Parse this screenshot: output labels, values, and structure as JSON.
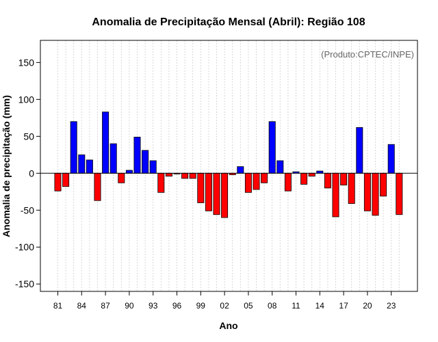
{
  "chart_data": {
    "type": "bar",
    "title": "Anomalia de Precipitação Mensal (Abril): Região 108",
    "xlabel": "Ano",
    "ylabel": "Anomalia de precipitação (mm)",
    "annotation": "(Produto:CPTEC/INPE)",
    "ylim": [
      -160,
      180
    ],
    "yticks": [
      -150,
      -100,
      -50,
      0,
      50,
      100,
      150
    ],
    "x_tick_labels": [
      "81",
      "84",
      "87",
      "90",
      "93",
      "96",
      "99",
      "02",
      "05",
      "08",
      "11",
      "14",
      "17",
      "20",
      "23"
    ],
    "grid": "vertical dotted",
    "colors": {
      "positive": "#0000ff",
      "negative": "#ff0000",
      "grid": "#cccccc"
    },
    "years": [
      1981,
      1982,
      1983,
      1984,
      1985,
      1986,
      1987,
      1988,
      1989,
      1990,
      1991,
      1992,
      1993,
      1994,
      1995,
      1996,
      1997,
      1998,
      1999,
      2000,
      2001,
      2002,
      2003,
      2004,
      2005,
      2006,
      2007,
      2008,
      2009,
      2010,
      2011,
      2012,
      2013,
      2014,
      2015,
      2016,
      2017,
      2018,
      2019,
      2020,
      2021,
      2022,
      2023,
      2024
    ],
    "values": [
      -24,
      -18,
      70,
      25,
      18,
      -37,
      83,
      40,
      -13,
      4,
      49,
      31,
      17,
      -26,
      -4,
      -1,
      -7,
      -7,
      -40,
      -51,
      -56,
      -60,
      -2,
      9,
      -26,
      -22,
      -13,
      70,
      17,
      -24,
      2,
      -15,
      -4,
      3,
      -20,
      -59,
      -16,
      -41,
      62,
      -51,
      -57,
      -31,
      39,
      -56
    ]
  }
}
